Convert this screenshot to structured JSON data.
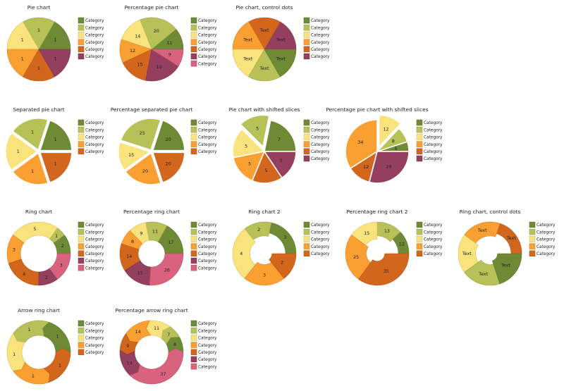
{
  "palette": {
    "dark_green": "#6e8a35",
    "light_green": "#b7c158",
    "yellow": "#f9e37c",
    "orange": "#fa9f32",
    "dark_orange": "#d2661d",
    "maroon": "#943f5e",
    "pink": "#d9627f"
  },
  "chart_data": [
    {
      "type": "pie",
      "title": "Pie chart",
      "categories": [
        "Category",
        "Category",
        "Category",
        "Category",
        "Category",
        "Category"
      ],
      "values": [
        1,
        1,
        1,
        1,
        1,
        1
      ],
      "labels": [
        "1",
        "1",
        "1",
        "1",
        "1",
        "1"
      ],
      "colors": [
        "dark_green",
        "light_green",
        "yellow",
        "orange",
        "dark_orange",
        "maroon"
      ]
    },
    {
      "type": "pie",
      "title": "Percentage pie chart",
      "categories": [
        "Category",
        "Category",
        "Category",
        "Category",
        "Category",
        "Category",
        "Category"
      ],
      "values": [
        11,
        20,
        14,
        12,
        15,
        19,
        9
      ],
      "labels": [
        "11",
        "20",
        "14",
        "12",
        "15",
        "19",
        "9"
      ],
      "colors": [
        "dark_green",
        "light_green",
        "yellow",
        "orange",
        "dark_orange",
        "maroon",
        "pink"
      ]
    },
    {
      "type": "pie",
      "title": "Pie chart, control dots",
      "categories": [
        "Category",
        "Category",
        "Category",
        "Category",
        "Category",
        "Category"
      ],
      "values": [
        1,
        1,
        1,
        1,
        1,
        1
      ],
      "labels": [
        "Text",
        "Text",
        "Text",
        "Text",
        "Text",
        "Text"
      ],
      "colors": [
        "maroon",
        "dark_orange",
        "orange",
        "yellow",
        "light_green",
        "dark_green"
      ],
      "legend_colors": [
        "dark_green",
        "light_green",
        "yellow",
        "orange",
        "dark_orange",
        "maroon"
      ]
    },
    {
      "type": "pie",
      "variant": "separated",
      "title": "Separated pie chart",
      "categories": [
        "Category",
        "Category",
        "Category",
        "Category",
        "Category"
      ],
      "values": [
        1,
        1,
        1,
        1,
        1
      ],
      "labels": [
        "1",
        "1",
        "1",
        "1",
        "1"
      ],
      "colors": [
        "dark_green",
        "light_green",
        "yellow",
        "orange",
        "dark_orange"
      ]
    },
    {
      "type": "pie",
      "variant": "separated",
      "title": "Percentage separated pie chart",
      "categories": [
        "Category",
        "Category",
        "Category",
        "Category",
        "Category"
      ],
      "values": [
        20,
        25,
        15,
        20,
        20
      ],
      "labels": [
        "20",
        "25",
        "15",
        "20",
        "20"
      ],
      "colors": [
        "dark_green",
        "light_green",
        "yellow",
        "orange",
        "dark_orange"
      ]
    },
    {
      "type": "pie",
      "variant": "shifted",
      "title": "Pie chart with shifted slices",
      "categories": [
        "Category",
        "Category",
        "Category",
        "Category",
        "Category",
        "Category"
      ],
      "values": [
        7,
        5,
        5,
        5,
        5,
        5
      ],
      "labels": [
        "7",
        "5",
        "5",
        "5",
        "5",
        "5"
      ],
      "shifted": [
        1
      ],
      "colors": [
        "dark_green",
        "light_green",
        "yellow",
        "orange",
        "dark_orange",
        "maroon"
      ]
    },
    {
      "type": "pie",
      "variant": "shifted",
      "title": "Percentage pie chart with shifted slices",
      "categories": [
        "Category",
        "Category",
        "Category",
        "Category",
        "Category",
        "Category"
      ],
      "values": [
        5,
        8,
        12,
        34,
        12,
        29
      ],
      "labels": [
        "5",
        "8",
        "12",
        "34",
        "12",
        "29"
      ],
      "shifted": [
        2
      ],
      "colors": [
        "dark_green",
        "light_green",
        "yellow",
        "orange",
        "dark_orange",
        "maroon"
      ]
    },
    {
      "type": "ring",
      "title": "Ring chart",
      "categories": [
        "Category",
        "Category",
        "Category",
        "Category",
        "Category",
        "Category",
        "Category"
      ],
      "values": [
        2,
        1,
        5,
        3,
        4,
        2,
        3
      ],
      "labels": [
        "2",
        "1",
        "5",
        "3",
        "4",
        "2",
        "3"
      ],
      "colors": [
        "dark_green",
        "light_green",
        "yellow",
        "orange",
        "dark_orange",
        "maroon",
        "pink"
      ]
    },
    {
      "type": "ring",
      "title": "Percentage ring chart",
      "categories": [
        "Category",
        "Category",
        "Category",
        "Category",
        "Category",
        "Category",
        "Category"
      ],
      "values": [
        17,
        11,
        9,
        8,
        14,
        15,
        26
      ],
      "labels": [
        "17",
        "11",
        "9",
        "8",
        "14",
        "15",
        "26"
      ],
      "colors": [
        "dark_green",
        "light_green",
        "yellow",
        "orange",
        "dark_orange",
        "maroon",
        "pink"
      ]
    },
    {
      "type": "ring",
      "variant": "spiral",
      "title": "Ring chart 2",
      "categories": [
        "Category",
        "Category",
        "Category",
        "Category",
        "Category"
      ],
      "values": [
        3,
        2,
        4,
        3,
        2
      ],
      "labels": [
        "3",
        "2",
        "4",
        "3",
        "2"
      ],
      "colors": [
        "dark_green",
        "light_green",
        "yellow",
        "orange",
        "dark_orange"
      ]
    },
    {
      "type": "ring",
      "variant": "spiral",
      "title": "Percentage ring chart 2",
      "categories": [
        "Category",
        "Category",
        "Category",
        "Category",
        "Category"
      ],
      "values": [
        12,
        13,
        15,
        25,
        35
      ],
      "labels": [
        "12",
        "13",
        "15",
        "25",
        "35"
      ],
      "colors": [
        "dark_green",
        "light_green",
        "yellow",
        "orange",
        "dark_orange"
      ]
    },
    {
      "type": "ring",
      "variant": "spiral",
      "title": "Ring chart, control dots",
      "categories": [
        "Category",
        "Category",
        "Category",
        "Category",
        "Category"
      ],
      "values": [
        1,
        1,
        1,
        1,
        1
      ],
      "labels": [
        "Text",
        "Text",
        "Text",
        "Text",
        "Text"
      ],
      "colors": [
        "dark_orange",
        "orange",
        "yellow",
        "light_green",
        "dark_green"
      ],
      "legend_colors": [
        "dark_green",
        "light_green",
        "yellow",
        "orange",
        "dark_orange"
      ]
    },
    {
      "type": "ring",
      "variant": "arrow",
      "title": "Arrow ring chart",
      "categories": [
        "Category",
        "Category",
        "Category",
        "Category",
        "Category"
      ],
      "values": [
        1,
        1,
        1,
        1,
        1
      ],
      "labels": [
        "1",
        "1",
        "1",
        "1",
        "1"
      ],
      "colors": [
        "dark_green",
        "light_green",
        "yellow",
        "orange",
        "dark_orange"
      ]
    },
    {
      "type": "ring",
      "variant": "arrow",
      "title": "Percentage arrow ring chart",
      "categories": [
        "Category",
        "Category",
        "Category",
        "Category",
        "Category",
        "Category",
        "Category"
      ],
      "values": [
        8,
        7,
        11,
        14,
        9,
        14,
        37
      ],
      "labels": [
        "8",
        "7",
        "11",
        "14",
        "9",
        "14",
        "37"
      ],
      "colors": [
        "dark_green",
        "light_green",
        "yellow",
        "orange",
        "dark_orange",
        "maroon",
        "pink"
      ]
    }
  ]
}
